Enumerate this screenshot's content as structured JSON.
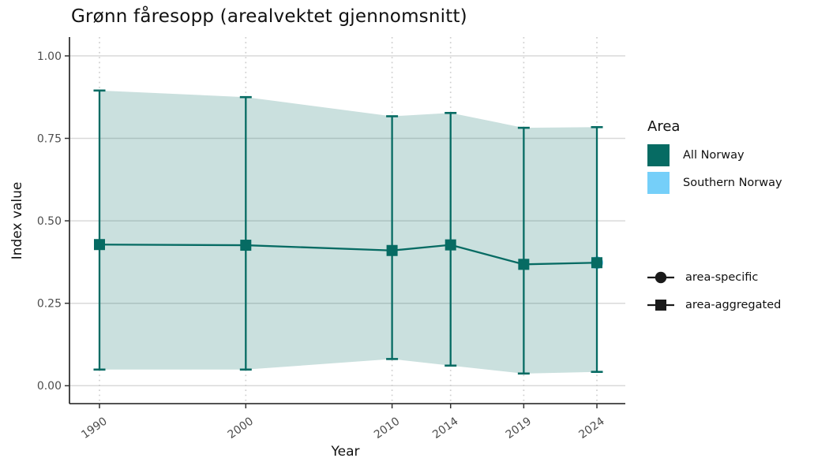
{
  "chart_data": {
    "type": "line",
    "title": "Grønn fåresopp (arealvektet gjennomsnitt)",
    "xlabel": "Year",
    "ylabel": "Index value",
    "x": [
      1990,
      2000,
      2010,
      2014,
      2019,
      2024
    ],
    "x_tick_labels": [
      "1990",
      "2000",
      "2010",
      "2014",
      "2019",
      "2024"
    ],
    "y_ticks": [
      0,
      0.25,
      0.5,
      0.75,
      1
    ],
    "y_tick_labels": [
      "0.00",
      "0.25",
      "0.50",
      "0.75",
      "1.00"
    ],
    "ylim": [
      0,
      1.04
    ],
    "grid": {
      "horizontal": "solid",
      "vertical": "dotted"
    },
    "legend_position": "right",
    "series": [
      {
        "name": "All Norway",
        "role": "area-aggregated",
        "marker": "square",
        "color": "#066b63",
        "values": [
          0.428,
          0.426,
          0.41,
          0.427,
          0.368,
          0.373
        ],
        "lower": [
          0.049,
          0.049,
          0.081,
          0.061,
          0.037,
          0.042
        ],
        "upper": [
          0.895,
          0.875,
          0.817,
          0.827,
          0.782,
          0.784
        ],
        "ribbon": true,
        "ribbon_opacity": 0.21
      },
      {
        "name": "Southern Norway",
        "role": "area-specific",
        "marker": "circle",
        "color": "#75cff9",
        "points": [
          {
            "x": 2024,
            "y": 0.373
          }
        ]
      }
    ]
  },
  "legend": {
    "area_title": "Area",
    "items": [
      {
        "label": "All Norway",
        "color": "#066b63"
      },
      {
        "label": "Southern Norway",
        "color": "#75cff9"
      }
    ],
    "shape_items": [
      {
        "label": "area-specific",
        "shape": "circle"
      },
      {
        "label": "area-aggregated",
        "shape": "square"
      }
    ]
  },
  "style": {
    "grid_major": "#d9d9d9",
    "grid_dotted": "#cfcfcf",
    "axis_color": "#1a1a1a",
    "tick_text_color": "#4d4d4d",
    "key_marker_color": "#1a1a1a"
  }
}
